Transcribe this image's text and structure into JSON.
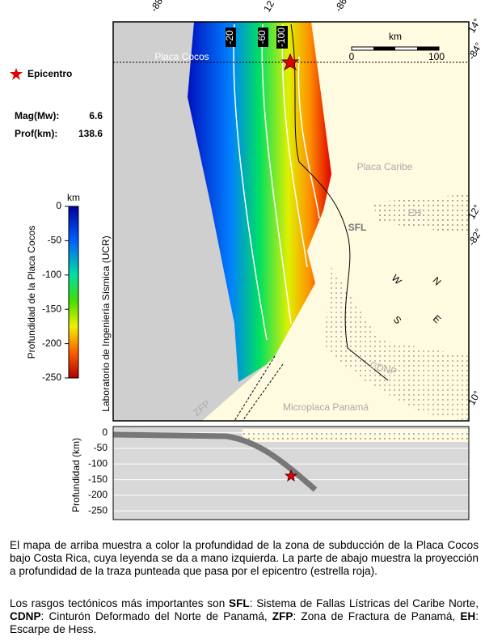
{
  "frame_labels": [
    "-88°",
    "12°",
    "-86°",
    "14°",
    "-84°",
    "12°",
    "-82°",
    "10°"
  ],
  "legend": {
    "epicenter": "Epicentro",
    "mag_label": "Mag(Mw):",
    "mag": "6.6",
    "depth_label": "Prof(km):",
    "depth": "138.6"
  },
  "colorbar": {
    "title": "Profundidad de la Placa Cocos",
    "unit": "km",
    "ylim": [
      0,
      -250
    ],
    "yticks": [
      0,
      -50,
      -100,
      -150,
      -200,
      -250
    ]
  },
  "credit": "Laboratorio de Ingeniería Sísmica (UCR)",
  "map_labels": {
    "cocos": "Placa Cocos",
    "caribe": "Placa Caribe",
    "eh": "EH",
    "sfl": "SFL",
    "cdnp": "CDNP",
    "zfp": "ZFP",
    "panama": "Microplaca Panamá"
  },
  "contours": [
    "-20",
    "-60",
    "-100"
  ],
  "scale": {
    "unit": "km",
    "start": "0",
    "end": "100"
  },
  "compass": {
    "n": "N",
    "e": "E",
    "s": "S",
    "w": "W"
  },
  "section": {
    "ylabel": "Profundidad (km)",
    "ylim": [
      -278,
      20
    ],
    "yticks": [
      0,
      -50,
      -100,
      -150,
      -200,
      -250
    ],
    "epicenter_depth": -138.6
  },
  "text": {
    "p1": "El mapa de arriba muestra a color la profundidad de la zona de subducción de la Placa Cocos bajo Costa Rica, cuya leyenda se da a mano izquierda.  La parte de abajo muestra la proyección a profundidad de la traza punteada que pasa por el epicentro (estrella roja).",
    "p2": [
      {
        "b": "Los rasgos tectónicos más importantes son "
      },
      {
        "s": "SFL"
      },
      {
        "b": ": Sistema de Fallas Lístricas del Caribe Norte, "
      },
      {
        "s": "CDNP"
      },
      {
        "b": ": Cinturón Deformado del Norte de Panamá, "
      },
      {
        "s": "ZFP"
      },
      {
        "b": ": Zona de Fractura de Panamá, "
      },
      {
        "s": "EH"
      },
      {
        "b": ": Escarpe de Hess."
      }
    ]
  }
}
